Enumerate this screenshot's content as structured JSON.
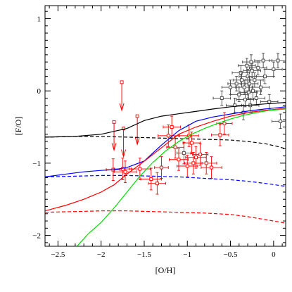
{
  "chart_data": {
    "type": "line",
    "title": "",
    "xlabel": "[O/H]",
    "ylabel": "[F/O]",
    "xlim": [
      -2.65,
      0.14
    ],
    "ylim": [
      -2.15,
      1.18
    ],
    "x_ticks": [
      -2.5,
      -2,
      -1.5,
      -1,
      -0.5,
      0
    ],
    "x_tick_labels": [
      "−2.5",
      "−2",
      "−1.5",
      "−1",
      "−0.5",
      "0"
    ],
    "y_ticks": [
      -2,
      -1,
      0,
      1
    ],
    "y_tick_labels": [
      "−2",
      "−1",
      "0",
      "1"
    ],
    "grid": false,
    "legend": "none",
    "series": [
      {
        "color": "#000000",
        "style": "solid",
        "x": [
          -2.65,
          -2.3,
          -2.0,
          -1.7,
          -1.5,
          -1.3,
          -1.0,
          -0.7,
          -0.5,
          -0.3,
          -0.1,
          0.14
        ],
        "y": [
          -0.64,
          -0.63,
          -0.6,
          -0.52,
          -0.41,
          -0.35,
          -0.3,
          -0.25,
          -0.22,
          -0.2,
          -0.18,
          -0.16
        ]
      },
      {
        "color": "#000000",
        "style": "dashed",
        "x": [
          -2.65,
          -2.3,
          -2.0,
          -1.7,
          -1.4,
          -1.1,
          -0.8,
          -0.5,
          -0.3,
          -0.1,
          0.05,
          0.14
        ],
        "y": [
          -0.64,
          -0.63,
          -0.63,
          -0.64,
          -0.65,
          -0.66,
          -0.67,
          -0.68,
          -0.7,
          -0.73,
          -0.77,
          -0.8
        ]
      },
      {
        "color": "#0000ff",
        "style": "solid",
        "x": [
          -2.65,
          -2.4,
          -2.2,
          -2.0,
          -1.85,
          -1.7,
          -1.5,
          -1.3,
          -1.1,
          -0.9,
          -0.7,
          -0.5,
          -0.3,
          -0.1,
          0.14
        ],
        "y": [
          -1.19,
          -1.15,
          -1.12,
          -1.1,
          -1.09,
          -1.06,
          -0.97,
          -0.75,
          -0.55,
          -0.42,
          -0.36,
          -0.32,
          -0.28,
          -0.25,
          -0.22
        ]
      },
      {
        "color": "#0000ff",
        "style": "dashed",
        "x": [
          -2.65,
          -2.3,
          -2.0,
          -1.7,
          -1.4,
          -1.1,
          -0.8,
          -0.5,
          -0.3,
          -0.1,
          0.14
        ],
        "y": [
          -1.19,
          -1.18,
          -1.17,
          -1.17,
          -1.18,
          -1.19,
          -1.21,
          -1.23,
          -1.25,
          -1.28,
          -1.32
        ]
      },
      {
        "color": "#ff0000",
        "style": "solid",
        "x": [
          -2.65,
          -2.4,
          -2.2,
          -2.0,
          -1.85,
          -1.7,
          -1.55,
          -1.4,
          -1.25,
          -1.1,
          -0.9,
          -0.7,
          -0.5,
          -0.3,
          -0.1,
          0.14
        ],
        "y": [
          -1.66,
          -1.58,
          -1.5,
          -1.4,
          -1.3,
          -1.15,
          -1.02,
          -0.88,
          -0.74,
          -0.6,
          -0.5,
          -0.42,
          -0.35,
          -0.3,
          -0.27,
          -0.24
        ]
      },
      {
        "color": "#ff0000",
        "style": "dashed",
        "x": [
          -2.65,
          -2.3,
          -2.0,
          -1.7,
          -1.4,
          -1.1,
          -0.8,
          -0.5,
          -0.3,
          -0.1,
          0.14
        ],
        "y": [
          -1.68,
          -1.67,
          -1.66,
          -1.66,
          -1.67,
          -1.68,
          -1.69,
          -1.71,
          -1.74,
          -1.78,
          -1.83
        ]
      },
      {
        "color": "#00dd00",
        "style": "solid",
        "x": [
          -2.28,
          -2.15,
          -2.0,
          -1.85,
          -1.7,
          -1.55,
          -1.4,
          -1.25,
          -1.1,
          -0.95,
          -0.8,
          -0.65,
          -0.5,
          -0.35,
          -0.2,
          -0.05,
          0.14
        ],
        "y": [
          -2.15,
          -1.98,
          -1.82,
          -1.62,
          -1.4,
          -1.18,
          -0.99,
          -0.83,
          -0.7,
          -0.6,
          -0.52,
          -0.45,
          -0.39,
          -0.34,
          -0.3,
          -0.27,
          -0.25
        ]
      }
    ],
    "red_upper_limits": [
      {
        "x": -1.85,
        "y": -0.43
      },
      {
        "x": -1.76,
        "y": 0.12
      },
      {
        "x": -1.74,
        "y": -0.52
      },
      {
        "x": -1.58,
        "y": -0.35
      }
    ],
    "red_points": [
      {
        "x": -1.86,
        "y": -1.09,
        "xerr": 0.08,
        "yerr": 0.15
      },
      {
        "x": -1.75,
        "y": -1.08,
        "xerr": 0.1,
        "yerr": 0.15
      },
      {
        "x": -1.72,
        "y": -1.12,
        "xerr": 0.13,
        "yerr": 0.15
      },
      {
        "x": -1.55,
        "y": -1.08,
        "xerr": 0.12,
        "yerr": 0.15
      },
      {
        "x": -1.42,
        "y": -1.22,
        "xerr": 0.12,
        "yerr": 0.15
      },
      {
        "x": -1.35,
        "y": -1.28,
        "xerr": 0.1,
        "yerr": 0.15
      },
      {
        "x": -1.3,
        "y": -1.06,
        "xerr": 0.08,
        "yerr": 0.15
      },
      {
        "x": -1.22,
        "y": -0.62,
        "xerr": 0.12,
        "yerr": 0.15
      },
      {
        "x": -1.18,
        "y": -0.5,
        "xerr": 0.1,
        "yerr": 0.15
      },
      {
        "x": -1.14,
        "y": -0.78,
        "xerr": 0.1,
        "yerr": 0.15
      },
      {
        "x": -1.1,
        "y": -0.95,
        "xerr": 0.11,
        "yerr": 0.15
      },
      {
        "x": -1.04,
        "y": -0.86,
        "xerr": 0.08,
        "yerr": 0.15
      },
      {
        "x": -1.0,
        "y": -1.04,
        "xerr": 0.12,
        "yerr": 0.15
      },
      {
        "x": -0.98,
        "y": -0.62,
        "xerr": 0.11,
        "yerr": 0.15
      },
      {
        "x": -0.95,
        "y": -0.72,
        "xerr": 0.1,
        "yerr": 0.15
      },
      {
        "x": -0.93,
        "y": -1.0,
        "xerr": 0.1,
        "yerr": 0.15
      },
      {
        "x": -0.9,
        "y": -0.92,
        "xerr": 0.12,
        "yerr": 0.15
      },
      {
        "x": -0.85,
        "y": -0.88,
        "xerr": 0.09,
        "yerr": 0.15
      },
      {
        "x": -0.78,
        "y": -1.0,
        "xerr": 0.12,
        "yerr": 0.15
      },
      {
        "x": -0.72,
        "y": -1.06,
        "xerr": 0.12,
        "yerr": 0.15
      },
      {
        "x": -0.62,
        "y": -0.61,
        "xerr": 0.1,
        "yerr": 0.15
      },
      {
        "x": -0.57,
        "y": -0.45,
        "xerr": 0.09,
        "yerr": 0.15
      }
    ],
    "black_points": [
      {
        "x": -0.6,
        "y": -0.1,
        "xerr": 0.1,
        "yerr": 0.1
      },
      {
        "x": -0.5,
        "y": 0.05,
        "xerr": 0.1,
        "yerr": 0.1
      },
      {
        "x": -0.45,
        "y": -0.2,
        "xerr": 0.1,
        "yerr": 0.1
      },
      {
        "x": -0.43,
        "y": 0.1,
        "xerr": 0.1,
        "yerr": 0.1
      },
      {
        "x": -0.4,
        "y": -0.05,
        "xerr": 0.1,
        "yerr": 0.1
      },
      {
        "x": -0.38,
        "y": 0.25,
        "xerr": 0.1,
        "yerr": 0.1
      },
      {
        "x": -0.37,
        "y": 0.15,
        "xerr": 0.1,
        "yerr": 0.1
      },
      {
        "x": -0.35,
        "y": -0.3,
        "xerr": 0.1,
        "yerr": 0.1
      },
      {
        "x": -0.34,
        "y": 0.05,
        "xerr": 0.1,
        "yerr": 0.1
      },
      {
        "x": -0.33,
        "y": -0.12,
        "xerr": 0.1,
        "yerr": 0.1
      },
      {
        "x": -0.31,
        "y": 0.35,
        "xerr": 0.1,
        "yerr": 0.1
      },
      {
        "x": -0.3,
        "y": 0.2,
        "xerr": 0.1,
        "yerr": 0.1
      },
      {
        "x": -0.29,
        "y": -0.02,
        "xerr": 0.1,
        "yerr": 0.1
      },
      {
        "x": -0.28,
        "y": 0.1,
        "xerr": 0.1,
        "yerr": 0.1
      },
      {
        "x": -0.27,
        "y": -0.2,
        "xerr": 0.1,
        "yerr": 0.1
      },
      {
        "x": -0.26,
        "y": 0.4,
        "xerr": 0.1,
        "yerr": 0.1
      },
      {
        "x": -0.25,
        "y": 0.28,
        "xerr": 0.1,
        "yerr": 0.1
      },
      {
        "x": -0.24,
        "y": 0.0,
        "xerr": 0.1,
        "yerr": 0.1
      },
      {
        "x": -0.22,
        "y": 0.15,
        "xerr": 0.1,
        "yerr": 0.1
      },
      {
        "x": -0.2,
        "y": -0.1,
        "xerr": 0.1,
        "yerr": 0.1
      },
      {
        "x": -0.18,
        "y": 0.32,
        "xerr": 0.1,
        "yerr": 0.1
      },
      {
        "x": -0.15,
        "y": 0.05,
        "xerr": 0.1,
        "yerr": 0.1
      },
      {
        "x": -0.12,
        "y": 0.42,
        "xerr": 0.1,
        "yerr": 0.1
      },
      {
        "x": -0.1,
        "y": 0.2,
        "xerr": 0.1,
        "yerr": 0.1
      },
      {
        "x": -0.05,
        "y": -0.15,
        "xerr": 0.1,
        "yerr": 0.1
      },
      {
        "x": 0.0,
        "y": 0.3,
        "xerr": 0.1,
        "yerr": 0.1
      },
      {
        "x": 0.05,
        "y": 0.42,
        "xerr": 0.1,
        "yerr": 0.1
      },
      {
        "x": 0.08,
        "y": -0.42,
        "xerr": 0.1,
        "yerr": 0.1
      }
    ]
  }
}
